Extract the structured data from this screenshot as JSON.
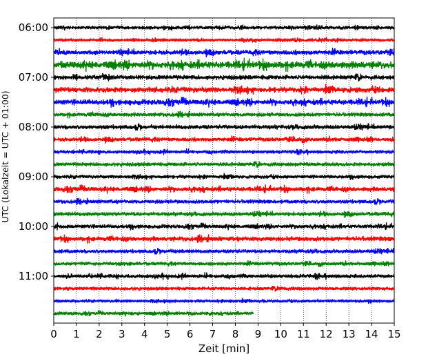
{
  "chart_data": {
    "type": "line",
    "title": "",
    "xlabel": "Zeit  [min]",
    "ylabel": "UTC (Lokalzeit = UTC + 01:00)",
    "xlim": [
      0,
      15
    ],
    "x_ticks": [
      0,
      1,
      2,
      3,
      4,
      5,
      6,
      7,
      8,
      9,
      10,
      11,
      12,
      13,
      14,
      15
    ],
    "x_tick_labels": [
      "0",
      "1",
      "2",
      "3",
      "4",
      "5",
      "6",
      "7",
      "8",
      "9",
      "10",
      "11",
      "12",
      "13",
      "14",
      "15"
    ],
    "y_tick_labels": [
      "06:00",
      "07:00",
      "08:00",
      "09:00",
      "10:00",
      "11:00"
    ],
    "y_tick_rows": [
      0,
      4,
      8,
      12,
      16,
      20
    ],
    "grid": "vertical-dotted",
    "legend": "none",
    "trace_interval_minutes": 15,
    "trace_colors": [
      "#000000",
      "#ff0000",
      "#0000ff",
      "#008000"
    ],
    "traces": [
      {
        "start": "06:00",
        "end_min": 15,
        "amplitude": 0.2,
        "color": "#000000"
      },
      {
        "start": "06:15",
        "end_min": 15,
        "amplitude": 0.18,
        "color": "#ff0000"
      },
      {
        "start": "06:30",
        "end_min": 15,
        "amplitude": 0.3,
        "color": "#0000ff"
      },
      {
        "start": "06:45",
        "end_min": 15,
        "amplitude": 0.45,
        "color": "#008000"
      },
      {
        "start": "07:00",
        "end_min": 15,
        "amplitude": 0.3,
        "color": "#000000"
      },
      {
        "start": "07:15",
        "end_min": 15,
        "amplitude": 0.35,
        "color": "#ff0000"
      },
      {
        "start": "07:30",
        "end_min": 15,
        "amplitude": 0.35,
        "color": "#0000ff"
      },
      {
        "start": "07:45",
        "end_min": 15,
        "amplitude": 0.25,
        "color": "#008000"
      },
      {
        "start": "08:00",
        "end_min": 15,
        "amplitude": 0.28,
        "color": "#000000"
      },
      {
        "start": "08:15",
        "end_min": 15,
        "amplitude": 0.25,
        "color": "#ff0000"
      },
      {
        "start": "08:30",
        "end_min": 15,
        "amplitude": 0.22,
        "color": "#0000ff"
      },
      {
        "start": "08:45",
        "end_min": 15,
        "amplitude": 0.25,
        "color": "#008000"
      },
      {
        "start": "09:00",
        "end_min": 15,
        "amplitude": 0.22,
        "color": "#000000"
      },
      {
        "start": "09:15",
        "end_min": 15,
        "amplitude": 0.3,
        "color": "#ff0000"
      },
      {
        "start": "09:30",
        "end_min": 15,
        "amplitude": 0.25,
        "color": "#0000ff"
      },
      {
        "start": "09:45",
        "end_min": 15,
        "amplitude": 0.25,
        "color": "#008000"
      },
      {
        "start": "10:00",
        "end_min": 15,
        "amplitude": 0.25,
        "color": "#000000"
      },
      {
        "start": "10:15",
        "end_min": 15,
        "amplitude": 0.3,
        "color": "#ff0000"
      },
      {
        "start": "10:30",
        "end_min": 15,
        "amplitude": 0.25,
        "color": "#0000ff"
      },
      {
        "start": "10:45",
        "end_min": 15,
        "amplitude": 0.22,
        "color": "#008000"
      },
      {
        "start": "11:00",
        "end_min": 15,
        "amplitude": 0.25,
        "color": "#000000"
      },
      {
        "start": "11:15",
        "end_min": 15,
        "amplitude": 0.22,
        "color": "#ff0000"
      },
      {
        "start": "11:30",
        "end_min": 15,
        "amplitude": 0.18,
        "color": "#0000ff"
      },
      {
        "start": "11:45",
        "end_min": 8.8,
        "amplitude": 0.2,
        "color": "#008000"
      }
    ]
  }
}
